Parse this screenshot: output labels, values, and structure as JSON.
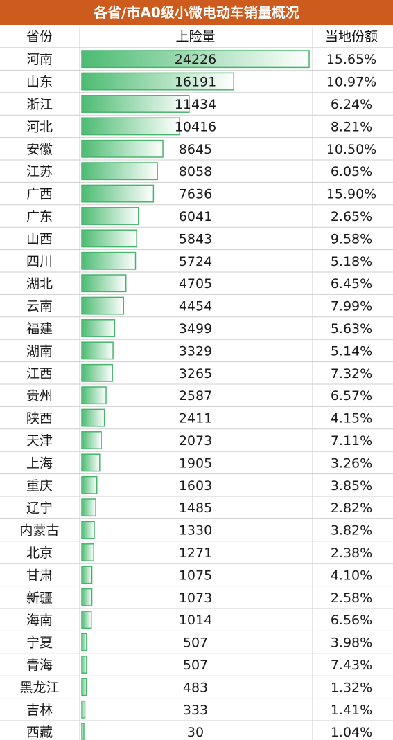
{
  "title": "各省/市A0级小微电动车销量概况",
  "headers": {
    "province": "省份",
    "insurance": "上险量",
    "share": "当地份额"
  },
  "colors": {
    "title_bg": "#cd5b1d",
    "bar_fill_start": "#4cbb72",
    "bar_fill_end": "#ffffff",
    "bar_border": "#46b56b",
    "grid": "#cfcfcf"
  },
  "chart_data": {
    "type": "table",
    "title": "各省/市A0级小微电动车销量概况",
    "columns": [
      "省份",
      "上险量",
      "当地份额"
    ],
    "rows": [
      {
        "province": "河南",
        "value": 24226,
        "value_label": "24226",
        "share": "15.65%"
      },
      {
        "province": "山东",
        "value": 16191,
        "value_label": "16191",
        "share": "10.97%"
      },
      {
        "province": "浙江",
        "value": 11434,
        "value_label": "11434",
        "share": "6.24%"
      },
      {
        "province": "河北",
        "value": 10416,
        "value_label": "10416",
        "share": "8.21%"
      },
      {
        "province": "安徽",
        "value": 8645,
        "value_label": "8645",
        "share": "10.50%"
      },
      {
        "province": "江苏",
        "value": 8058,
        "value_label": "8058",
        "share": "6.05%"
      },
      {
        "province": "广西",
        "value": 7636,
        "value_label": "7636",
        "share": "15.90%"
      },
      {
        "province": "广东",
        "value": 6041,
        "value_label": "6041",
        "share": "2.65%"
      },
      {
        "province": "山西",
        "value": 5843,
        "value_label": "5843",
        "share": "9.58%"
      },
      {
        "province": "四川",
        "value": 5724,
        "value_label": "5724",
        "share": "5.18%"
      },
      {
        "province": "湖北",
        "value": 4705,
        "value_label": "4705",
        "share": "6.45%"
      },
      {
        "province": "云南",
        "value": 4454,
        "value_label": "4454",
        "share": "7.99%"
      },
      {
        "province": "福建",
        "value": 3499,
        "value_label": "3499",
        "share": "5.63%"
      },
      {
        "province": "湖南",
        "value": 3329,
        "value_label": "3329",
        "share": "5.14%"
      },
      {
        "province": "江西",
        "value": 3265,
        "value_label": "3265",
        "share": "7.32%"
      },
      {
        "province": "贵州",
        "value": 2587,
        "value_label": "2587",
        "share": "6.57%"
      },
      {
        "province": "陕西",
        "value": 2411,
        "value_label": "2411",
        "share": "4.15%"
      },
      {
        "province": "天津",
        "value": 2073,
        "value_label": "2073",
        "share": "7.11%"
      },
      {
        "province": "上海",
        "value": 1905,
        "value_label": "1905",
        "share": "3.26%"
      },
      {
        "province": "重庆",
        "value": 1603,
        "value_label": "1603",
        "share": "3.85%"
      },
      {
        "province": "辽宁",
        "value": 1485,
        "value_label": "1485",
        "share": "2.82%"
      },
      {
        "province": "内蒙古",
        "value": 1330,
        "value_label": "1330",
        "share": "3.82%"
      },
      {
        "province": "北京",
        "value": 1271,
        "value_label": "1271",
        "share": "2.38%"
      },
      {
        "province": "甘肃",
        "value": 1075,
        "value_label": "1075",
        "share": "4.10%"
      },
      {
        "province": "新疆",
        "value": 1073,
        "value_label": "1073",
        "share": "2.58%"
      },
      {
        "province": "海南",
        "value": 1014,
        "value_label": "1014",
        "share": "6.56%"
      },
      {
        "province": "宁夏",
        "value": 507,
        "value_label": "507",
        "share": "3.98%"
      },
      {
        "province": "青海",
        "value": 507,
        "value_label": "507",
        "share": "7.43%"
      },
      {
        "province": "黑龙江",
        "value": 483,
        "value_label": "483",
        "share": "1.32%"
      },
      {
        "province": "吉林",
        "value": 333,
        "value_label": "333",
        "share": "1.41%"
      },
      {
        "province": "西藏",
        "value": 30,
        "value_label": "30",
        "share": "1.04%"
      }
    ]
  }
}
